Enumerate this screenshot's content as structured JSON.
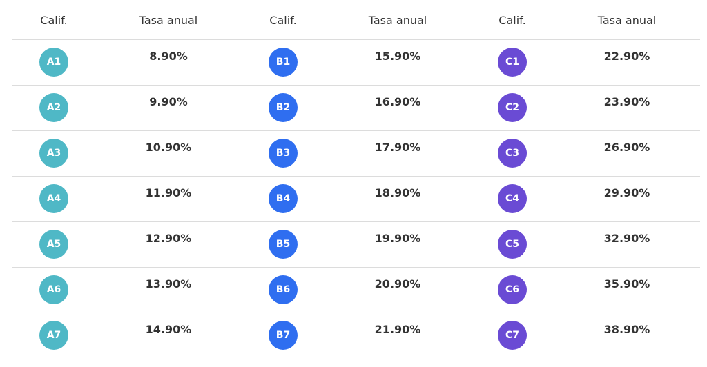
{
  "table": {
    "header": [
      "Calif.",
      "Tasa anual",
      "Calif.",
      "Tasa anual",
      "Calif.",
      "Tasa anual"
    ],
    "rows": [
      [
        "A1",
        "8.90%",
        "B1",
        "15.90%",
        "C1",
        "22.90%"
      ],
      [
        "A2",
        "9.90%",
        "B2",
        "16.90%",
        "C2",
        "23.90%"
      ],
      [
        "A3",
        "10.90%",
        "B3",
        "17.90%",
        "C3",
        "26.90%"
      ],
      [
        "A4",
        "11.90%",
        "B4",
        "18.90%",
        "C4",
        "29.90%"
      ],
      [
        "A5",
        "12.90%",
        "B5",
        "19.90%",
        "C5",
        "32.90%"
      ],
      [
        "A6",
        "13.90%",
        "B6",
        "20.90%",
        "C6",
        "35.90%"
      ],
      [
        "A7",
        "14.90%",
        "B7",
        "21.90%",
        "C7",
        "38.90%"
      ]
    ]
  }
}
